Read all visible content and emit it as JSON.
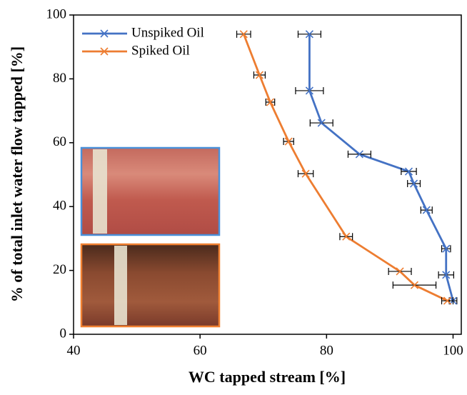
{
  "chart_data": {
    "type": "line",
    "xlabel": "WC tapped stream [%]",
    "ylabel": "% of total inlet water flow tapped [%]",
    "xlim": [
      40,
      101.3
    ],
    "xticks": [
      40,
      60,
      80,
      100
    ],
    "ylim": [
      0,
      100
    ],
    "yticks": [
      0,
      20,
      40,
      60,
      80,
      100
    ],
    "legend": "upper left",
    "series": [
      {
        "name": "Unspiked Oil",
        "color": "#4472c4",
        "x": [
          77.3,
          77.3,
          79.2,
          85.2,
          93.0,
          93.8,
          95.8,
          98.9,
          98.9,
          100.0
        ],
        "values": [
          94.0,
          76.3,
          66.2,
          56.4,
          51.0,
          47.2,
          38.9,
          26.8,
          18.6,
          10.5
        ],
        "xerr": [
          1.8,
          2.2,
          1.8,
          1.8,
          1.2,
          1.0,
          0.9,
          0.7,
          1.2,
          0.6
        ]
      },
      {
        "name": "Spiked Oil",
        "color": "#ed7d31",
        "x": [
          66.9,
          69.4,
          71.1,
          74.0,
          76.7,
          83.1,
          91.6,
          93.9,
          99.1
        ],
        "values": [
          94.0,
          81.2,
          72.7,
          60.4,
          50.3,
          30.6,
          19.7,
          15.4,
          10.5
        ],
        "xerr": [
          1.1,
          0.9,
          0.7,
          0.8,
          1.2,
          1.0,
          1.8,
          3.4,
          0.9
        ]
      }
    ]
  }
}
